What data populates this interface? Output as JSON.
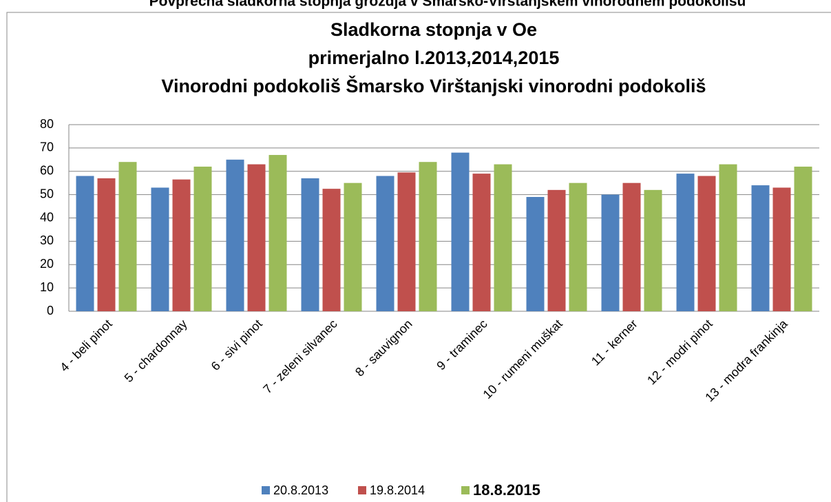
{
  "header": {
    "title": "Povprečna sladkorna stopnja grozdja v Šmarsko-Virštanjskem vinorodnem podokolišu"
  },
  "chart_data": {
    "type": "bar",
    "title": [
      "Sladkorna stopnja v Oe",
      "primerjalno l.2013,2014,2015",
      "Vinorodni podokoliš Šmarsko Virštanjski vinorodni podokoliš"
    ],
    "categories": [
      "4 - beli pinot",
      "5 - chardonnay",
      "6 - sivi pinot",
      "7 - zeleni silvanec",
      "8 - sauvignon",
      "9 - traminec",
      "10 - rumeni muškat",
      "11 - kerner",
      "12 - modri pinot",
      "13 - modra frankinja"
    ],
    "series": [
      {
        "name": "20.8.2013",
        "color": "#4f81bd",
        "values": [
          58,
          53,
          65,
          57,
          58,
          68,
          49,
          50,
          59,
          54
        ]
      },
      {
        "name": "19.8.2014",
        "color": "#c0504d",
        "values": [
          57,
          56.5,
          63,
          52.5,
          59.5,
          59,
          52,
          55,
          58,
          53
        ]
      },
      {
        "name": "18.8.2015",
        "color": "#9bbb59",
        "values": [
          64,
          62,
          67,
          55,
          64,
          63,
          55,
          52,
          63,
          62
        ]
      }
    ],
    "ylim": [
      0,
      80
    ],
    "yticks": [
      0,
      10,
      20,
      30,
      40,
      50,
      60,
      70,
      80
    ],
    "grid": true,
    "legend": "bottom"
  }
}
